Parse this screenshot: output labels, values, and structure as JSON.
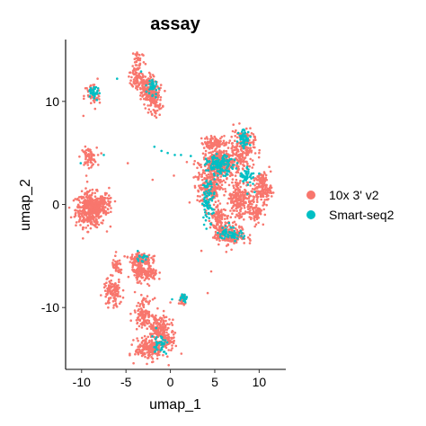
{
  "chart_data": {
    "type": "scatter",
    "title": "assay",
    "xlabel": "umap_1",
    "ylabel": "umap_2",
    "xlim": [
      -11.8,
      13.0
    ],
    "ylim": [
      -16.0,
      16.0
    ],
    "x_ticks": [
      -10,
      -5,
      0,
      5,
      10
    ],
    "y_ticks": [
      -10,
      0,
      10
    ],
    "x_tick_labels": [
      "-10",
      "-5",
      "0",
      "5",
      "10"
    ],
    "y_tick_labels": [
      "-10",
      "0",
      "10"
    ],
    "grid": false,
    "legend_position": "right",
    "series": [
      {
        "name": "10x 3' v2",
        "color": "#F8766D",
        "clusters": [
          {
            "cx": -9.0,
            "cy": -0.5,
            "sx": 1.1,
            "sy": 1.1,
            "n": 420
          },
          {
            "cx": -7.5,
            "cy": 0.0,
            "sx": 0.7,
            "sy": 0.6,
            "n": 90
          },
          {
            "cx": -9.2,
            "cy": 4.6,
            "sx": 0.6,
            "sy": 0.6,
            "n": 70
          },
          {
            "cx": -8.8,
            "cy": 10.5,
            "sx": 0.6,
            "sy": 0.9,
            "n": 50
          },
          {
            "cx": -3.6,
            "cy": 14.0,
            "sx": 0.5,
            "sy": 0.8,
            "n": 40
          },
          {
            "cx": -3.8,
            "cy": 12.3,
            "sx": 0.4,
            "sy": 0.6,
            "n": 60
          },
          {
            "cx": -2.7,
            "cy": 11.2,
            "sx": 0.7,
            "sy": 0.9,
            "n": 160
          },
          {
            "cx": -1.8,
            "cy": 10.2,
            "sx": 0.6,
            "sy": 0.9,
            "n": 110
          },
          {
            "cx": 5.8,
            "cy": 4.0,
            "sx": 1.4,
            "sy": 1.0,
            "n": 360
          },
          {
            "cx": 8.1,
            "cy": 5.5,
            "sx": 0.9,
            "sy": 1.2,
            "n": 170
          },
          {
            "cx": 4.4,
            "cy": 2.0,
            "sx": 0.9,
            "sy": 1.6,
            "n": 220
          },
          {
            "cx": 7.8,
            "cy": 0.5,
            "sx": 1.0,
            "sy": 1.4,
            "n": 220
          },
          {
            "cx": 10.3,
            "cy": 1.6,
            "sx": 0.7,
            "sy": 1.0,
            "n": 150
          },
          {
            "cx": 9.6,
            "cy": -0.8,
            "sx": 0.5,
            "sy": 0.6,
            "n": 70
          },
          {
            "cx": 5.4,
            "cy": -1.5,
            "sx": 0.6,
            "sy": 1.1,
            "n": 110
          },
          {
            "cx": 6.8,
            "cy": -3.0,
            "sx": 1.2,
            "sy": 0.6,
            "n": 150
          },
          {
            "cx": 5.0,
            "cy": 6.0,
            "sx": 1.0,
            "sy": 0.4,
            "n": 90
          },
          {
            "cx": -3.4,
            "cy": -5.3,
            "sx": 0.8,
            "sy": 0.4,
            "n": 120
          },
          {
            "cx": -2.8,
            "cy": -6.7,
            "sx": 0.9,
            "sy": 0.5,
            "n": 130
          },
          {
            "cx": -3.5,
            "cy": -6.0,
            "sx": 0.5,
            "sy": 0.5,
            "n": 40
          },
          {
            "cx": -6.0,
            "cy": -6.1,
            "sx": 0.4,
            "sy": 0.6,
            "n": 40
          },
          {
            "cx": -6.5,
            "cy": -8.6,
            "sx": 0.7,
            "sy": 0.9,
            "n": 110
          },
          {
            "cx": -3.0,
            "cy": -10.5,
            "sx": 0.7,
            "sy": 0.9,
            "n": 110
          },
          {
            "cx": -1.3,
            "cy": -12.0,
            "sx": 0.9,
            "sy": 0.8,
            "n": 150
          },
          {
            "cx": -2.3,
            "cy": -14.0,
            "sx": 1.1,
            "sy": 0.7,
            "n": 200
          },
          {
            "cx": -0.4,
            "cy": -13.2,
            "sx": 0.6,
            "sy": 0.6,
            "n": 60
          },
          {
            "cx": 1.4,
            "cy": -9.2,
            "sx": 0.3,
            "sy": 0.3,
            "n": 30
          }
        ],
        "scattered": [
          [
            -6.9,
            1.6
          ],
          [
            -8.2,
            12.2
          ],
          [
            -2.2,
            9.0
          ],
          [
            -4.5,
            12.8
          ],
          [
            -1.2,
            8.7
          ],
          [
            -4.8,
            4.0
          ],
          [
            -2.0,
            2.4
          ],
          [
            0.4,
            2.8
          ],
          [
            4.6,
            -6.5
          ],
          [
            4.2,
            -8.6
          ],
          [
            3.5,
            -4.5
          ],
          [
            6.3,
            -4.6
          ],
          [
            9.0,
            -3.5
          ],
          [
            11.3,
            3.2
          ],
          [
            10.0,
            5.0
          ],
          [
            -9.8,
            8.6
          ],
          [
            -7.0,
            -10.0
          ],
          [
            -4.0,
            -8.5
          ],
          [
            -7.2,
            -7.6
          ],
          [
            0.0,
            -9.5
          ],
          [
            -1.8,
            -5.0
          ],
          [
            -3.8,
            14.6
          ]
        ]
      },
      {
        "name": "Smart-seq2",
        "color": "#00BFC4",
        "clusters": [
          {
            "cx": 5.6,
            "cy": 3.8,
            "sx": 1.0,
            "sy": 0.6,
            "n": 130
          },
          {
            "cx": 8.3,
            "cy": 6.4,
            "sx": 0.4,
            "sy": 0.6,
            "n": 50
          },
          {
            "cx": 4.3,
            "cy": 0.5,
            "sx": 0.5,
            "sy": 1.4,
            "n": 80
          },
          {
            "cx": 6.8,
            "cy": -2.8,
            "sx": 0.9,
            "sy": 0.4,
            "n": 60
          },
          {
            "cx": 8.6,
            "cy": 2.8,
            "sx": 0.5,
            "sy": 0.8,
            "n": 40
          },
          {
            "cx": -8.6,
            "cy": 10.8,
            "sx": 0.4,
            "sy": 0.4,
            "n": 30
          },
          {
            "cx": -2.0,
            "cy": 11.4,
            "sx": 0.4,
            "sy": 0.7,
            "n": 30
          },
          {
            "cx": -1.2,
            "cy": -13.5,
            "sx": 0.6,
            "sy": 0.6,
            "n": 35
          },
          {
            "cx": 1.5,
            "cy": -9.0,
            "sx": 0.25,
            "sy": 0.3,
            "n": 20
          },
          {
            "cx": -3.2,
            "cy": -5.2,
            "sx": 0.5,
            "sy": 0.3,
            "n": 15
          }
        ],
        "scattered": [
          [
            -1.8,
            5.6
          ],
          [
            -1.0,
            5.2
          ],
          [
            -0.3,
            5.0
          ],
          [
            0.5,
            4.8
          ],
          [
            1.2,
            4.8
          ],
          [
            2.3,
            4.7
          ],
          [
            -6.0,
            12.2
          ],
          [
            -7.5,
            4.8
          ],
          [
            -10.1,
            4.0
          ],
          [
            10.0,
            3.0
          ],
          [
            9.5,
            1.2
          ],
          [
            6.6,
            -1.8
          ],
          [
            -3.3,
            12.9
          ],
          [
            0.2,
            -9.2
          ],
          [
            -1.6,
            -12.0
          ]
        ]
      }
    ]
  }
}
